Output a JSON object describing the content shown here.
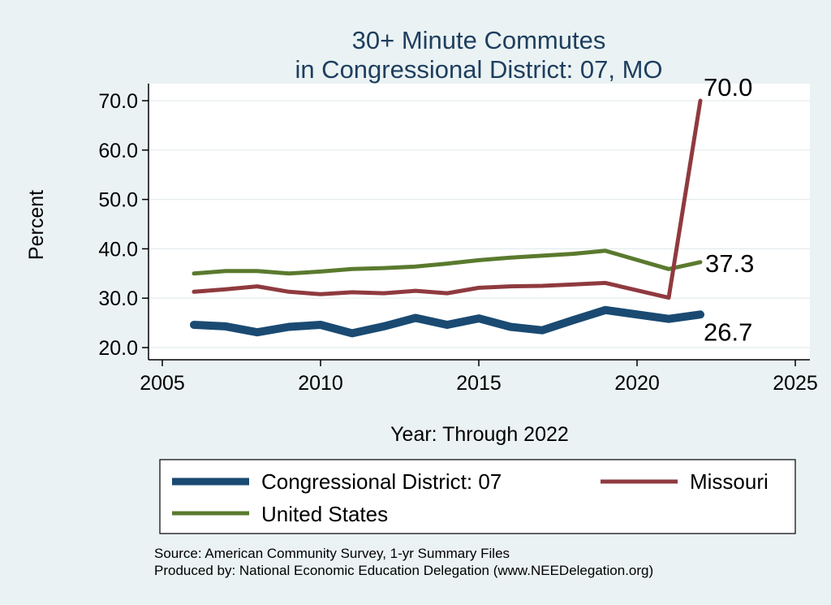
{
  "chart_data": {
    "type": "line",
    "title": [
      "30+ Minute Commutes",
      "in Congressional District:  07, MO"
    ],
    "xlabel": "Year: Through 2022",
    "ylabel": "Percent",
    "xlim": [
      2005,
      2025
    ],
    "ylim": [
      20,
      70
    ],
    "x_ticks": [
      "2005",
      "2010",
      "2015",
      "2020",
      "2025"
    ],
    "y_ticks": [
      "20.0",
      "30.0",
      "40.0",
      "50.0",
      "60.0",
      "70.0"
    ],
    "grid": true,
    "legend_position": "bottom",
    "x": [
      2006,
      2007,
      2008,
      2009,
      2010,
      2011,
      2012,
      2013,
      2014,
      2015,
      2016,
      2017,
      2018,
      2019,
      2021,
      2022
    ],
    "series": [
      {
        "name": "Congressional District:  07",
        "color": "#1a4a72",
        "values": [
          24.6,
          24.3,
          23.1,
          24.2,
          24.6,
          22.9,
          24.3,
          26.0,
          24.6,
          25.9,
          24.2,
          23.5,
          25.6,
          27.6,
          25.8,
          26.7
        ],
        "end_label": "26.7"
      },
      {
        "name": "Missouri",
        "color": "#8f3a3f",
        "values": [
          31.3,
          31.8,
          32.4,
          31.3,
          30.8,
          31.2,
          31.0,
          31.5,
          31.0,
          32.1,
          32.4,
          32.5,
          32.8,
          33.1,
          30.1,
          70.0
        ],
        "end_label": "70.0"
      },
      {
        "name": "United States",
        "color": "#5a7a2e",
        "values": [
          35.0,
          35.5,
          35.5,
          35.0,
          35.4,
          35.9,
          36.1,
          36.4,
          37.0,
          37.7,
          38.2,
          38.6,
          39.0,
          39.6,
          35.9,
          37.3
        ],
        "end_label": "37.3"
      }
    ]
  },
  "footer": {
    "source": "Source: American Community Survey, 1-yr Summary Files",
    "produced_by": "Produced by: National Economic Education Delegation (www.NEEDelegation.org)"
  }
}
